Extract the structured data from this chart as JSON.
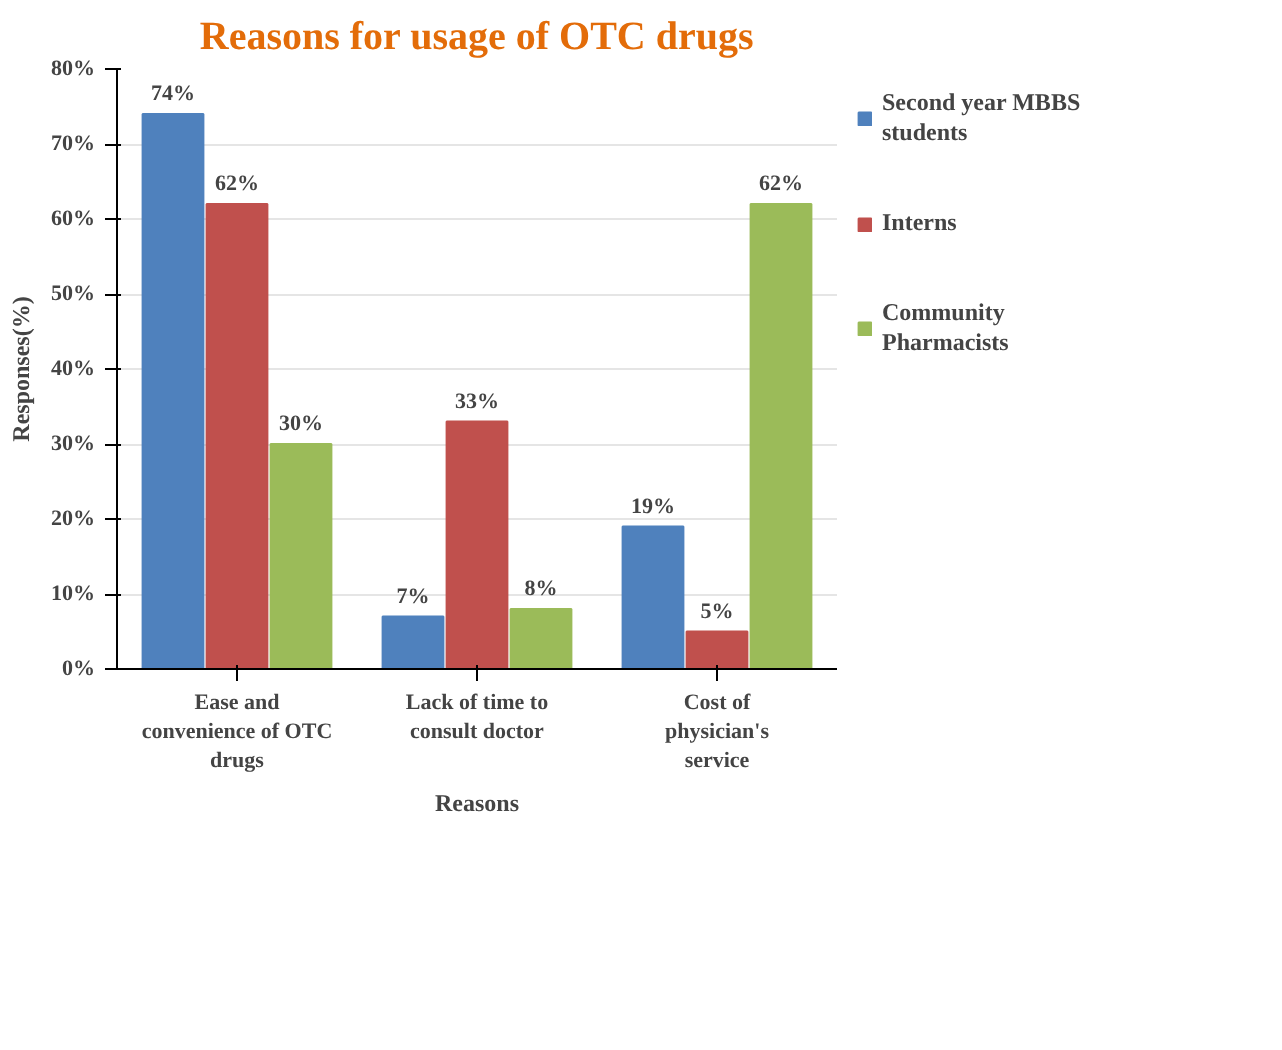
{
  "chart_data": {
    "type": "bar",
    "title": "Reasons for usage of OTC drugs",
    "xlabel": "Reasons",
    "ylabel": "Responses(%)",
    "categories": [
      "Ease and convenience of OTC drugs",
      "Lack of time to consult doctor",
      "Cost of physician's service"
    ],
    "series": [
      {
        "name": "Second year MBBS students",
        "color": "#4f81bd",
        "values": [
          74,
          7,
          19
        ],
        "value_labels": [
          "74%",
          "7%",
          "19%"
        ]
      },
      {
        "name": "Interns",
        "color": "#c0504d",
        "values": [
          62,
          33,
          5
        ],
        "value_labels": [
          "62%",
          "33%",
          "5%"
        ]
      },
      {
        "name": "Community Pharmacists",
        "color": "#9bbb59",
        "values": [
          30,
          8,
          62
        ],
        "value_labels": [
          "30%",
          "8%",
          "62%"
        ]
      }
    ],
    "ylim": [
      0,
      80
    ],
    "yticks": [
      {
        "value": 0,
        "label": "0%"
      },
      {
        "value": 10,
        "label": "10%"
      },
      {
        "value": 20,
        "label": "20%"
      },
      {
        "value": 30,
        "label": "30%"
      },
      {
        "value": 40,
        "label": "40%"
      },
      {
        "value": 50,
        "label": "50%"
      },
      {
        "value": 60,
        "label": "60%"
      },
      {
        "value": 70,
        "label": "70%"
      },
      {
        "value": 80,
        "label": "80%"
      }
    ],
    "grid": "y",
    "legend": "right"
  }
}
